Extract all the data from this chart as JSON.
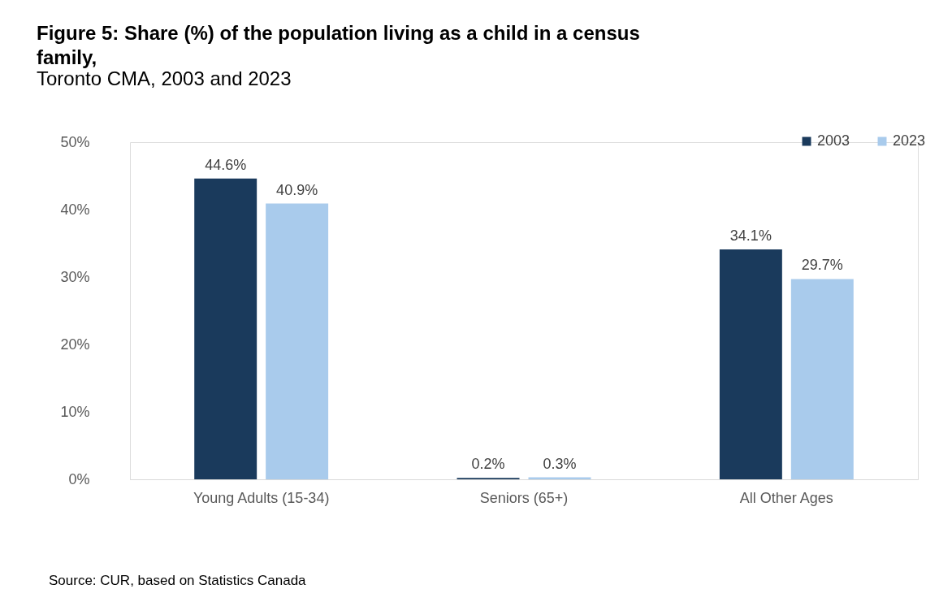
{
  "chart_data": {
    "type": "bar",
    "title": "Figure 5: Share (%) of the population living as a child in a census family,",
    "subtitle": "Toronto CMA, 2003 and 2023",
    "categories": [
      "Young Adults (15-34)",
      "Seniors (65+)",
      "All Other Ages"
    ],
    "series": [
      {
        "name": "2003",
        "color": "#1a3a5c",
        "values": [
          44.6,
          0.2,
          34.1
        ],
        "value_labels": [
          "44.6%",
          "0.2%",
          "34.1%"
        ]
      },
      {
        "name": "2023",
        "color": "#a9cbec",
        "values": [
          40.9,
          0.3,
          29.7
        ],
        "value_labels": [
          "40.9%",
          "0.3%",
          "29.7%"
        ]
      }
    ],
    "ylim": [
      0,
      50
    ],
    "yticks": [
      {
        "value": 0,
        "label": "0%"
      },
      {
        "value": 10,
        "label": "10%"
      },
      {
        "value": 20,
        "label": "20%"
      },
      {
        "value": 30,
        "label": "30%"
      },
      {
        "value": 40,
        "label": "40%"
      },
      {
        "value": 50,
        "label": "50%"
      }
    ],
    "grid": false,
    "legend": "top right",
    "annotations": [
      "Source: CUR, based on Statistics Canada"
    ]
  }
}
